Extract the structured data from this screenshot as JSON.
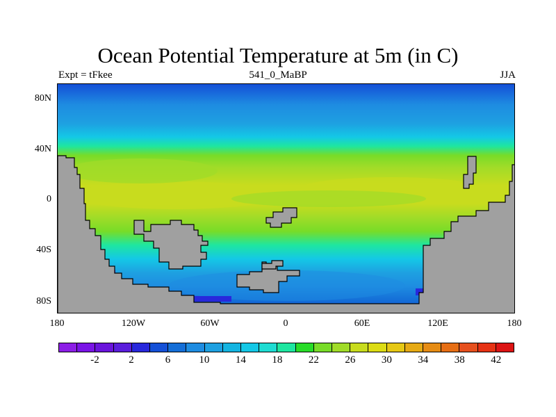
{
  "title": "Ocean Potential Temperature at 5m (in C)",
  "subtitle_left": "Expt = tFkee",
  "subtitle_center": "541_0_MaBP",
  "subtitle_right": "JJA",
  "y_ticks": [
    "80N",
    "40N",
    "0",
    "40S",
    "80S"
  ],
  "x_ticks": [
    "180",
    "120W",
    "60W",
    "0",
    "60E",
    "120E",
    "180"
  ],
  "colorbar": {
    "colors": [
      "#8c1ee6",
      "#7a14e6",
      "#6a14dc",
      "#5a1edc",
      "#2828dc",
      "#1450d7",
      "#146ed7",
      "#1e8ce1",
      "#1ea0e1",
      "#14b4e1",
      "#14c8e6",
      "#1edcd2",
      "#1ee6a0",
      "#28dc28",
      "#78dc28",
      "#a0dc28",
      "#c8dc1e",
      "#dcdc14",
      "#e6c814",
      "#e6aa14",
      "#e68c14",
      "#e66e14",
      "#e6501e",
      "#e63214",
      "#dc1414"
    ],
    "labels": [
      "-2",
      "2",
      "6",
      "10",
      "14",
      "18",
      "22",
      "26",
      "30",
      "34",
      "38",
      "42"
    ]
  },
  "chart_data": {
    "type": "heatmap",
    "title": "Ocean Potential Temperature at 5m (in C)",
    "variable": "Ocean Potential Temperature at 5m",
    "units": "C",
    "experiment": "tFkee",
    "period": "541_0_MaBP",
    "season": "JJA",
    "xlim": [
      -180,
      180
    ],
    "ylim": [
      -90,
      90
    ],
    "colorbar_range": [
      -4,
      44
    ],
    "colorbar_step": 2,
    "zonal_profile_latitudes": [
      90,
      80,
      70,
      60,
      50,
      40,
      30,
      20,
      10,
      0,
      -10,
      -20,
      -30,
      -40,
      -50,
      -60,
      -70,
      -80
    ],
    "zonal_profile_temps_C": [
      9,
      12,
      14,
      16,
      19,
      23,
      27,
      29,
      30,
      30,
      30,
      29,
      27,
      23,
      20,
      16,
      12,
      8
    ]
  }
}
